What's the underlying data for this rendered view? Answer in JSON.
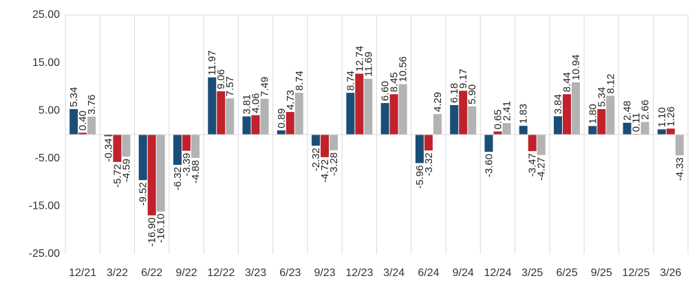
{
  "chart_data": {
    "type": "bar",
    "categories": [
      "12/21",
      "3/22",
      "6/22",
      "9/22",
      "12/22",
      "3/23",
      "6/23",
      "9/23",
      "12/23",
      "3/24",
      "6/24",
      "9/24",
      "12/24",
      "3/25",
      "6/25",
      "9/25",
      "12/25",
      "3/26"
    ],
    "series": [
      {
        "color": "#1a4e78",
        "values": [
          5.34,
          -0.34,
          -9.52,
          -6.32,
          11.97,
          3.81,
          0.89,
          -2.32,
          8.74,
          6.6,
          -5.96,
          6.18,
          -3.6,
          1.83,
          3.84,
          1.8,
          2.48,
          1.1
        ],
        "value_labels": [
          "5.34",
          "-0.34",
          "-9.52",
          "-6.32",
          "11.97",
          "3.81",
          "0.89",
          "-2.32",
          "8.74",
          "6.60",
          "-5.96",
          "6.18",
          "-3.60",
          "1.83",
          "3.84",
          "1.80",
          "2.48",
          "1.10"
        ]
      },
      {
        "color": "#c0222b",
        "values": [
          0.4,
          -5.72,
          -16.9,
          -3.39,
          9.06,
          4.06,
          4.73,
          -4.72,
          12.74,
          8.45,
          -3.32,
          9.17,
          0.65,
          -3.47,
          8.44,
          5.34,
          0.11,
          1.26
        ],
        "value_labels": [
          "0.40",
          "-5.72",
          "-16.90",
          "-3.39",
          "9.06",
          "4.06",
          "4.73",
          "-4.72",
          "12.74",
          "8.45",
          "-3.32",
          "9.17",
          "0.65",
          "-3.47",
          "8.44",
          "5.34",
          "0.11",
          "1.26"
        ]
      },
      {
        "color": "#b3b3b3",
        "values": [
          3.76,
          -4.59,
          -16.1,
          -4.88,
          7.57,
          7.49,
          8.74,
          -3.28,
          11.69,
          10.56,
          4.29,
          5.9,
          2.41,
          -4.27,
          10.94,
          8.12,
          2.66,
          -4.33
        ],
        "value_labels": [
          "3.76",
          "-4.59",
          "-16.10",
          "-4.88",
          "7.57",
          "7.49",
          "8.74",
          "-3.28",
          "11.69",
          "10.56",
          "4.29",
          "5.90",
          "2.41",
          "-4.27",
          "10.94",
          "8.12",
          "2.66",
          "-4.33"
        ]
      }
    ],
    "ylim": [
      -25,
      25
    ],
    "yticks": [
      {
        "value": 25,
        "label": "25.00"
      },
      {
        "value": 15,
        "label": "15.00"
      },
      {
        "value": 5,
        "label": "5.00"
      },
      {
        "value": -5,
        "label": "-5.00"
      },
      {
        "value": -15,
        "label": "-15.00"
      },
      {
        "value": -25,
        "label": "-25.00"
      }
    ],
    "grid": false
  }
}
